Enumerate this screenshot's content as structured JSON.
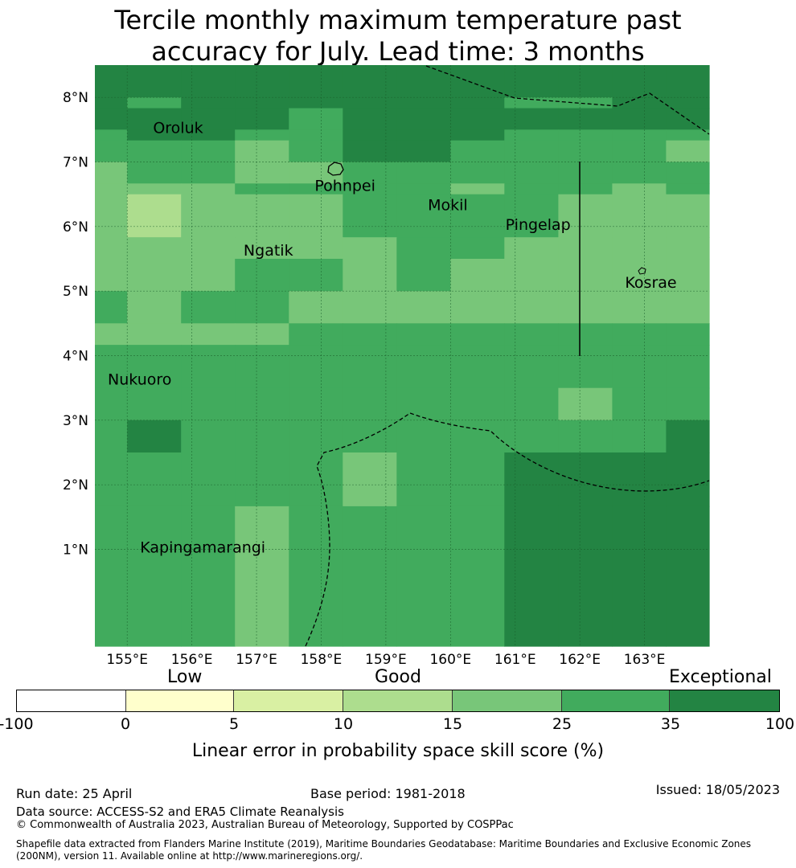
{
  "title_line1": "Tercile monthly maximum temperature past",
  "title_line2": "accuracy for July. Lead time: 3 months",
  "colors": {
    "c0": "#ffffff",
    "c1": "#ffffcc",
    "c2": "#d9f0a3",
    "c3": "#addd8e",
    "c4": "#78c679",
    "c5": "#41ab5d",
    "c6": "#238443"
  },
  "chart_data": {
    "type": "heatmap",
    "lon_ticks": [
      "155°E",
      "156°E",
      "157°E",
      "158°E",
      "159°E",
      "160°E",
      "161°E",
      "162°E",
      "163°E"
    ],
    "lat_ticks": [
      "8°N",
      "7°N",
      "6°N",
      "5°N",
      "4°N",
      "3°N",
      "2°N",
      "1°N"
    ],
    "lon_edges": [
      154.5,
      155.0,
      155.8333,
      156.6667,
      157.5,
      158.3333,
      159.1667,
      160.0,
      160.8333,
      161.6667,
      162.5,
      163.3333,
      164.0
    ],
    "lat_edges": [
      8.5,
      8.0,
      7.3333,
      6.6667,
      5.8333,
      5.0,
      4.1667,
      3.3333,
      2.5,
      1.6667,
      0.8333,
      0.0,
      -0.5
    ],
    "grid": [
      [
        6,
        6,
        6,
        6,
        6,
        6,
        6,
        6,
        6,
        6,
        6,
        6
      ],
      [
        6,
        5,
        6,
        6,
        6,
        6,
        6,
        6,
        5,
        5,
        6,
        6
      ],
      [
        6,
        6,
        6,
        6,
        5,
        6,
        6,
        6,
        6,
        6,
        6,
        6
      ],
      [
        5,
        6,
        6,
        5,
        5,
        6,
        6,
        6,
        5,
        5,
        5,
        5
      ],
      [
        5,
        5,
        5,
        4,
        5,
        6,
        6,
        5,
        5,
        5,
        5,
        4
      ],
      [
        4,
        5,
        5,
        4,
        4,
        5,
        5,
        5,
        5,
        5,
        5,
        5
      ],
      [
        4,
        4,
        4,
        5,
        5,
        5,
        5,
        4,
        5,
        5,
        4,
        5
      ],
      [
        4,
        3,
        4,
        4,
        4,
        5,
        5,
        5,
        5,
        4,
        4,
        4
      ],
      [
        4,
        4,
        4,
        4,
        4,
        4,
        5,
        5,
        4,
        4,
        4,
        4
      ],
      [
        4,
        4,
        4,
        5,
        5,
        4,
        5,
        4,
        4,
        4,
        4,
        4
      ],
      [
        5,
        4,
        5,
        5,
        4,
        4,
        4,
        4,
        4,
        4,
        4,
        4
      ],
      [
        4,
        4,
        4,
        4,
        5,
        5,
        5,
        5,
        5,
        5,
        5,
        5
      ],
      [
        5,
        5,
        5,
        5,
        5,
        5,
        5,
        5,
        5,
        5,
        5,
        5
      ],
      [
        5,
        5,
        5,
        5,
        5,
        5,
        5,
        5,
        5,
        4,
        5,
        5
      ],
      [
        5,
        6,
        5,
        5,
        5,
        5,
        5,
        5,
        5,
        5,
        5,
        6
      ],
      [
        5,
        5,
        5,
        5,
        5,
        4,
        5,
        5,
        6,
        6,
        6,
        6
      ],
      [
        5,
        5,
        5,
        4,
        5,
        5,
        5,
        5,
        6,
        6,
        6,
        6
      ]
    ],
    "grid_lat_edges": [
      8.5,
      8.0,
      7.8333,
      7.5,
      7.3333,
      7.0,
      6.6667,
      6.5,
      5.8333,
      5.5,
      5.0,
      4.5,
      4.1667,
      3.5,
      3.0,
      2.5,
      1.6667,
      -0.5
    ],
    "places": [
      {
        "name": "Oroluk",
        "lon": 155.3,
        "lat": 7.55
      },
      {
        "name": "Pohnpei",
        "lon": 157.8,
        "lat": 6.65
      },
      {
        "name": "Mokil",
        "lon": 159.55,
        "lat": 6.35
      },
      {
        "name": "Pingelap",
        "lon": 160.75,
        "lat": 6.05
      },
      {
        "name": "Ngatik",
        "lon": 156.7,
        "lat": 5.65
      },
      {
        "name": "Kosrae",
        "lon": 162.6,
        "lat": 5.15
      },
      {
        "name": "Nukuoro",
        "lon": 154.6,
        "lat": 3.65
      },
      {
        "name": "Kapingamarangi",
        "lon": 155.1,
        "lat": 1.05
      }
    ],
    "colorbar": {
      "ticks": [
        "-100",
        "0",
        "5",
        "10",
        "15",
        "25",
        "35",
        "100"
      ],
      "categories": [
        "Low",
        "Good",
        "Exceptional"
      ],
      "label": "Linear error in probability space skill score (%)"
    }
  },
  "footer": {
    "run_date": "Run date: 25 April",
    "base_period": "Base period: 1981-2018",
    "issued": "Issued: 18/05/2023",
    "data_source": "Data source: ACCESS-S2 and ERA5 Climate Reanalysis",
    "copyright": "© Commonwealth of Australia 2023, Australian Bureau of Meteorology, Supported by COSPPac",
    "shapefile_line1": "Shapefile data extracted from Flanders Marine Institute (2019), Maritime Boundaries Geodatabase: Maritime Boundaries and Exclusive Economic Zones",
    "shapefile_line2": "(200NM), version 11. Available online at http://www.marineregions.org/."
  }
}
